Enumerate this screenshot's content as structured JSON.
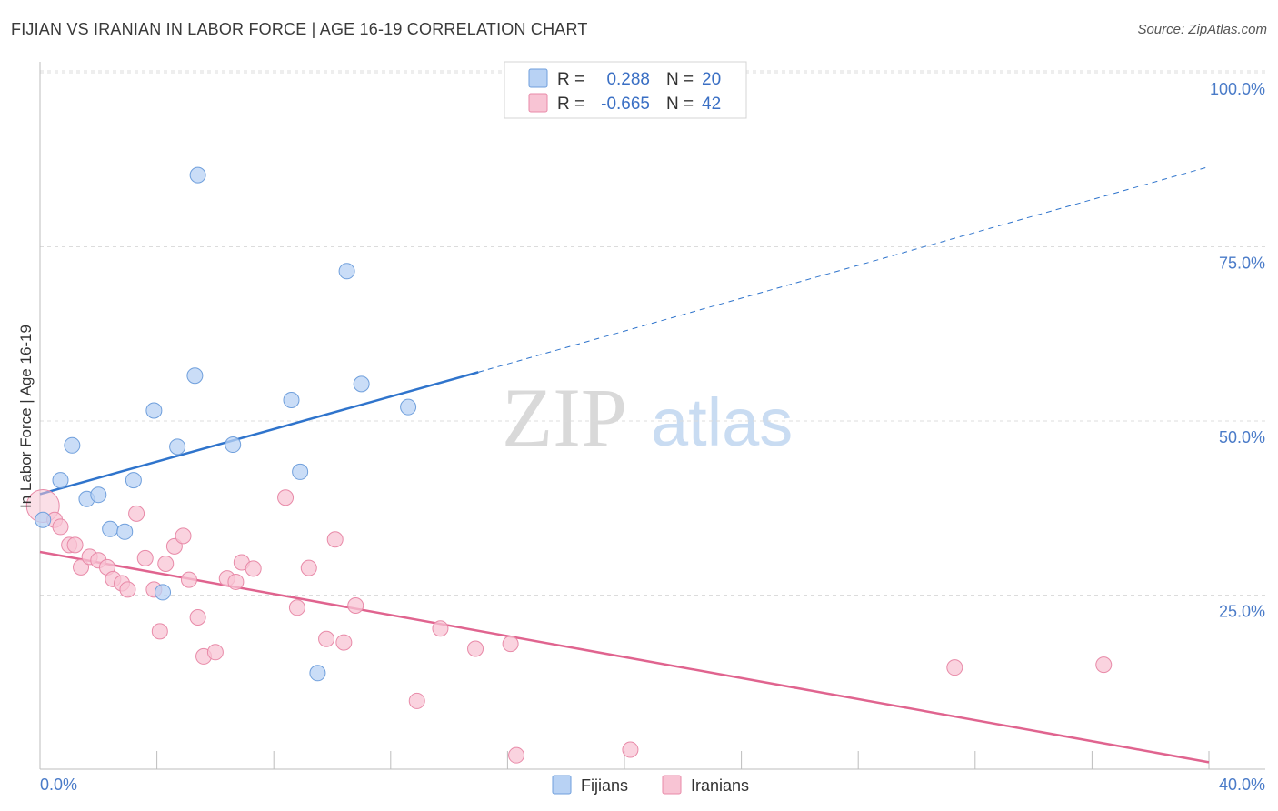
{
  "title": "FIJIAN VS IRANIAN IN LABOR FORCE | AGE 16-19 CORRELATION CHART",
  "source": "Source: ZipAtlas.com",
  "watermark": {
    "zip": "ZIP",
    "atlas": "atlas"
  },
  "colors": {
    "fijian_fill": "#b8d2f4",
    "fijian_stroke": "#6f9fdc",
    "fijian_line": "#2f74cc",
    "iranian_fill": "#f8c4d4",
    "iranian_stroke": "#e88aa8",
    "iranian_line": "#e0648f",
    "grid": "#dcdcdc",
    "axis_text": "#4a7bc8"
  },
  "legend": {
    "rows": [
      {
        "r_label": "R =",
        "r_value": "0.288",
        "n_label": "N =",
        "n_value": "20"
      },
      {
        "r_label": "R =",
        "r_value": "-0.665",
        "n_label": "N =",
        "n_value": "42"
      }
    ]
  },
  "chart_data": {
    "type": "scatter",
    "title": "FIJIAN VS IRANIAN IN LABOR FORCE | AGE 16-19 CORRELATION CHART",
    "xlabel": "",
    "ylabel": "In Labor Force | Age 16-19",
    "xlim": [
      0,
      40
    ],
    "ylim": [
      0,
      100
    ],
    "x_tick_labels": [
      "0.0%",
      "40.0%"
    ],
    "y_ticks": [
      25,
      50,
      75,
      100
    ],
    "y_tick_labels": [
      "25.0%",
      "50.0%",
      "75.0%",
      "100.0%"
    ],
    "series": [
      {
        "name": "Fijians",
        "R": 0.288,
        "N": 20,
        "points": [
          [
            0.1,
            35.8
          ],
          [
            0.7,
            41.5
          ],
          [
            1.1,
            46.5
          ],
          [
            1.6,
            38.8
          ],
          [
            2.0,
            39.4
          ],
          [
            2.4,
            34.5
          ],
          [
            2.9,
            34.1
          ],
          [
            3.2,
            41.5
          ],
          [
            3.9,
            51.5
          ],
          [
            4.2,
            25.4
          ],
          [
            4.7,
            46.3
          ],
          [
            5.3,
            56.5
          ],
          [
            5.4,
            85.3
          ],
          [
            6.6,
            46.6
          ],
          [
            8.6,
            53.0
          ],
          [
            8.9,
            42.7
          ],
          [
            9.5,
            13.8
          ],
          [
            10.5,
            71.5
          ],
          [
            11.0,
            55.3
          ],
          [
            12.6,
            52.0
          ]
        ],
        "trend": {
          "x0": 0,
          "y0": 39.5,
          "x_solid_end": 15,
          "y_solid_end": 57.0,
          "x1": 40,
          "y1": 86.5
        }
      },
      {
        "name": "Iranians",
        "R": -0.665,
        "N": 42,
        "points": [
          [
            0.1,
            37.8
          ],
          [
            0.5,
            35.8
          ],
          [
            0.7,
            34.8
          ],
          [
            1.0,
            32.2
          ],
          [
            1.2,
            32.2
          ],
          [
            1.4,
            29.0
          ],
          [
            1.7,
            30.5
          ],
          [
            2.0,
            30.0
          ],
          [
            2.3,
            29.0
          ],
          [
            2.5,
            27.3
          ],
          [
            2.8,
            26.7
          ],
          [
            3.0,
            25.8
          ],
          [
            3.3,
            36.7
          ],
          [
            3.6,
            30.3
          ],
          [
            3.9,
            25.8
          ],
          [
            4.1,
            19.8
          ],
          [
            4.3,
            29.5
          ],
          [
            4.6,
            32.0
          ],
          [
            4.9,
            33.5
          ],
          [
            5.1,
            27.2
          ],
          [
            5.4,
            21.8
          ],
          [
            5.6,
            16.2
          ],
          [
            6.0,
            16.8
          ],
          [
            6.4,
            27.4
          ],
          [
            6.7,
            26.9
          ],
          [
            6.9,
            29.7
          ],
          [
            7.3,
            28.8
          ],
          [
            8.4,
            39.0
          ],
          [
            8.8,
            23.2
          ],
          [
            9.2,
            28.9
          ],
          [
            9.8,
            18.7
          ],
          [
            10.1,
            33.0
          ],
          [
            10.4,
            18.2
          ],
          [
            10.8,
            23.5
          ],
          [
            12.9,
            9.8
          ],
          [
            13.7,
            20.2
          ],
          [
            14.9,
            17.3
          ],
          [
            16.1,
            18.0
          ],
          [
            16.3,
            2.0
          ],
          [
            20.2,
            2.8
          ],
          [
            31.3,
            14.6
          ],
          [
            36.4,
            15.0
          ]
        ],
        "trend": {
          "x0": 0,
          "y0": 31.2,
          "x1": 40,
          "y1": 1.0
        }
      }
    ]
  },
  "bottom_legend": {
    "items": [
      {
        "label": "Fijians"
      },
      {
        "label": "Iranians"
      }
    ]
  }
}
